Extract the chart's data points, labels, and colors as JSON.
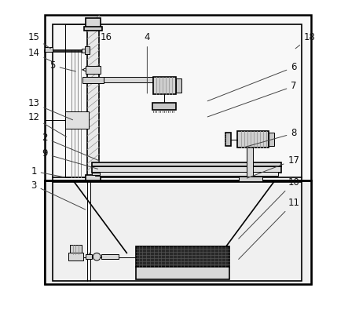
{
  "bg_color": "#ffffff",
  "lc": "#000000",
  "fc_light": "#f0f0f0",
  "fc_mid": "#d8d8d8",
  "fc_dark": "#b8b8b8",
  "fc_black": "#303030",
  "figsize": [
    4.43,
    4.04
  ],
  "dpi": 100,
  "annotations": {
    "15": [
      0.055,
      0.885,
      0.115,
      0.845
    ],
    "16": [
      0.285,
      0.885,
      0.255,
      0.845
    ],
    "4": [
      0.415,
      0.885,
      0.415,
      0.7
    ],
    "18": [
      0.93,
      0.885,
      0.88,
      0.845
    ],
    "14": [
      0.055,
      0.835,
      0.12,
      0.805
    ],
    "5": [
      0.115,
      0.795,
      0.195,
      0.775
    ],
    "6": [
      0.88,
      0.79,
      0.6,
      0.68
    ],
    "7": [
      0.88,
      0.73,
      0.6,
      0.63
    ],
    "13": [
      0.055,
      0.675,
      0.185,
      0.62
    ],
    "12": [
      0.055,
      0.63,
      0.165,
      0.565
    ],
    "2": [
      0.09,
      0.565,
      0.27,
      0.49
    ],
    "8": [
      0.88,
      0.58,
      0.72,
      0.535
    ],
    "9": [
      0.09,
      0.515,
      0.265,
      0.465
    ],
    "17": [
      0.88,
      0.495,
      0.725,
      0.435
    ],
    "1": [
      0.055,
      0.46,
      0.155,
      0.44
    ],
    "3": [
      0.055,
      0.415,
      0.225,
      0.335
    ],
    "10": [
      0.88,
      0.425,
      0.7,
      0.24
    ],
    "11": [
      0.88,
      0.36,
      0.7,
      0.175
    ]
  }
}
